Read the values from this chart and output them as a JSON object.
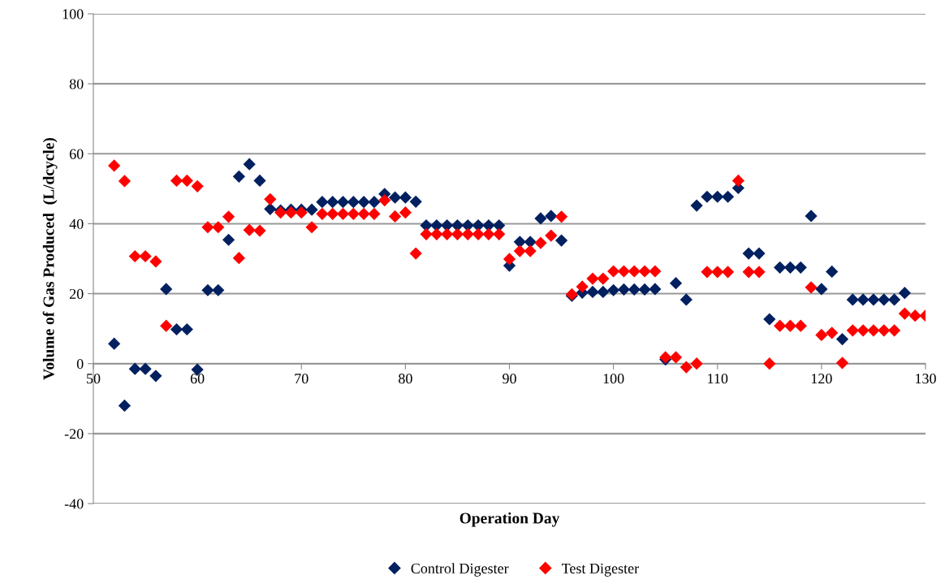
{
  "chart_data": {
    "type": "scatter",
    "xlabel": "Operation Day",
    "ylabel": "Volume of Gas Produced  (L/dcycle)",
    "xlim": [
      50,
      130
    ],
    "xticks": [
      50,
      60,
      70,
      80,
      90,
      100,
      110,
      120,
      130
    ],
    "ylim": [
      -40,
      100
    ],
    "yticks": [
      -40,
      -20,
      0,
      20,
      40,
      60,
      80,
      100
    ],
    "grid": "y",
    "legend": "bottom",
    "marker": "diamond",
    "series": [
      {
        "name": "Control Digester",
        "color": "#002060",
        "x": [
          52,
          53,
          54,
          55,
          56,
          57,
          58,
          59,
          60,
          61,
          62,
          63,
          64,
          65,
          66,
          67,
          68,
          69,
          70,
          71,
          72,
          73,
          74,
          75,
          76,
          77,
          78,
          79,
          80,
          81,
          82,
          83,
          84,
          85,
          86,
          87,
          88,
          89,
          90,
          91,
          92,
          93,
          94,
          95,
          96,
          97,
          98,
          99,
          100,
          101,
          102,
          103,
          104,
          105,
          106,
          107,
          108,
          109,
          110,
          111,
          112,
          113,
          114,
          115,
          116,
          117,
          118,
          119,
          120,
          121,
          122,
          123,
          124,
          125,
          126,
          127,
          128
        ],
        "values": [
          5.7,
          -12,
          -1.5,
          -1.5,
          -3.5,
          21.3,
          9.8,
          9.8,
          -1.7,
          21,
          21,
          35.4,
          53.5,
          57,
          52.3,
          44.2,
          43.8,
          44,
          44,
          44,
          46.2,
          46.2,
          46.2,
          46.2,
          46.2,
          46.2,
          48.5,
          47.5,
          47.5,
          46.3,
          39.5,
          39.5,
          39.5,
          39.5,
          39.5,
          39.5,
          39.5,
          39.5,
          28,
          34.8,
          34.8,
          41.5,
          42.2,
          35.2,
          19.4,
          20.3,
          20.5,
          20.5,
          21,
          21.2,
          21.2,
          21.2,
          21.3,
          1.2,
          23,
          18.3,
          45.2,
          47.7,
          47.7,
          47.7,
          50.2,
          31.5,
          31.5,
          12.7,
          27.5,
          27.5,
          27.5,
          42.2,
          21.3,
          26.3,
          7,
          18.3,
          18.3,
          18.3,
          18.3,
          18.3,
          20.2
        ]
      },
      {
        "name": "Test Digester",
        "color": "#ff0000",
        "x": [
          52,
          53,
          54,
          55,
          56,
          57,
          58,
          59,
          60,
          61,
          62,
          63,
          64,
          65,
          66,
          67,
          68,
          69,
          70,
          71,
          72,
          73,
          74,
          75,
          76,
          77,
          78,
          79,
          80,
          81,
          82,
          83,
          84,
          85,
          86,
          87,
          88,
          89,
          90,
          91,
          92,
          93,
          94,
          95,
          96,
          97,
          98,
          99,
          100,
          101,
          102,
          103,
          104,
          105,
          106,
          107,
          108,
          109,
          110,
          111,
          112,
          113,
          114,
          115,
          116,
          117,
          118,
          119,
          120,
          121,
          122,
          123,
          124,
          125,
          126,
          127,
          128,
          129,
          130
        ],
        "values": [
          56.6,
          52.2,
          30.7,
          30.7,
          29.2,
          10.8,
          52.3,
          52.3,
          50.7,
          39,
          39,
          42,
          30.2,
          38.2,
          38,
          47,
          43.2,
          43.2,
          43.2,
          39,
          42.8,
          42.8,
          42.8,
          42.8,
          42.8,
          42.8,
          46.7,
          42.1,
          43.2,
          31.5,
          37,
          37,
          37,
          37,
          37,
          37,
          37,
          37,
          29.9,
          32.2,
          32.2,
          34.5,
          36.6,
          42,
          19.8,
          22,
          24.3,
          24.3,
          26.4,
          26.4,
          26.4,
          26.4,
          26.4,
          1.8,
          1.8,
          -1,
          0,
          26.2,
          26.2,
          26.2,
          52.3,
          26.2,
          26.2,
          0,
          10.8,
          10.8,
          10.8,
          21.8,
          8.2,
          8.8,
          0.2,
          9.5,
          9.5,
          9.5,
          9.5,
          9.5,
          14.3,
          13.7,
          13.7
        ]
      }
    ]
  }
}
